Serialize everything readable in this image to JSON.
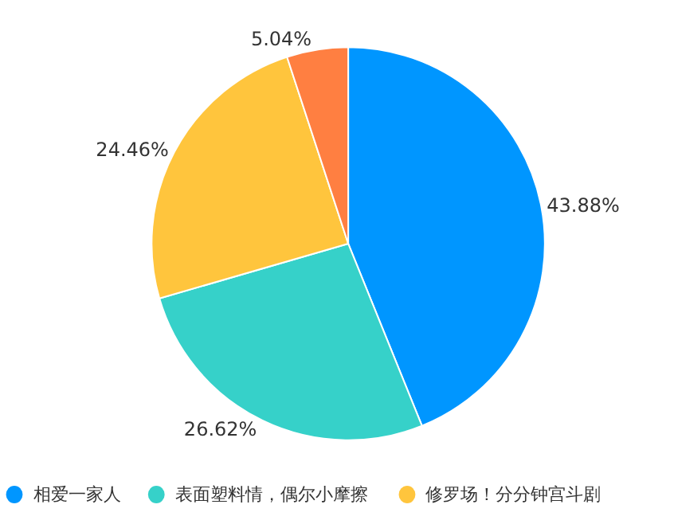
{
  "chart_data": {
    "type": "pie",
    "categories": [
      "相爱一家人",
      "表面塑料情，偶尔小摩擦",
      "修罗场！分分钟宫斗剧",
      null
    ],
    "values": [
      43.88,
      26.62,
      24.46,
      5.04
    ],
    "value_labels": [
      "43.88%",
      "26.62%",
      "24.46%",
      "5.04%"
    ],
    "colors": [
      "#0096ff",
      "#36d1c9",
      "#ffc53d",
      "#ff7f41"
    ],
    "legend": "bottom"
  }
}
